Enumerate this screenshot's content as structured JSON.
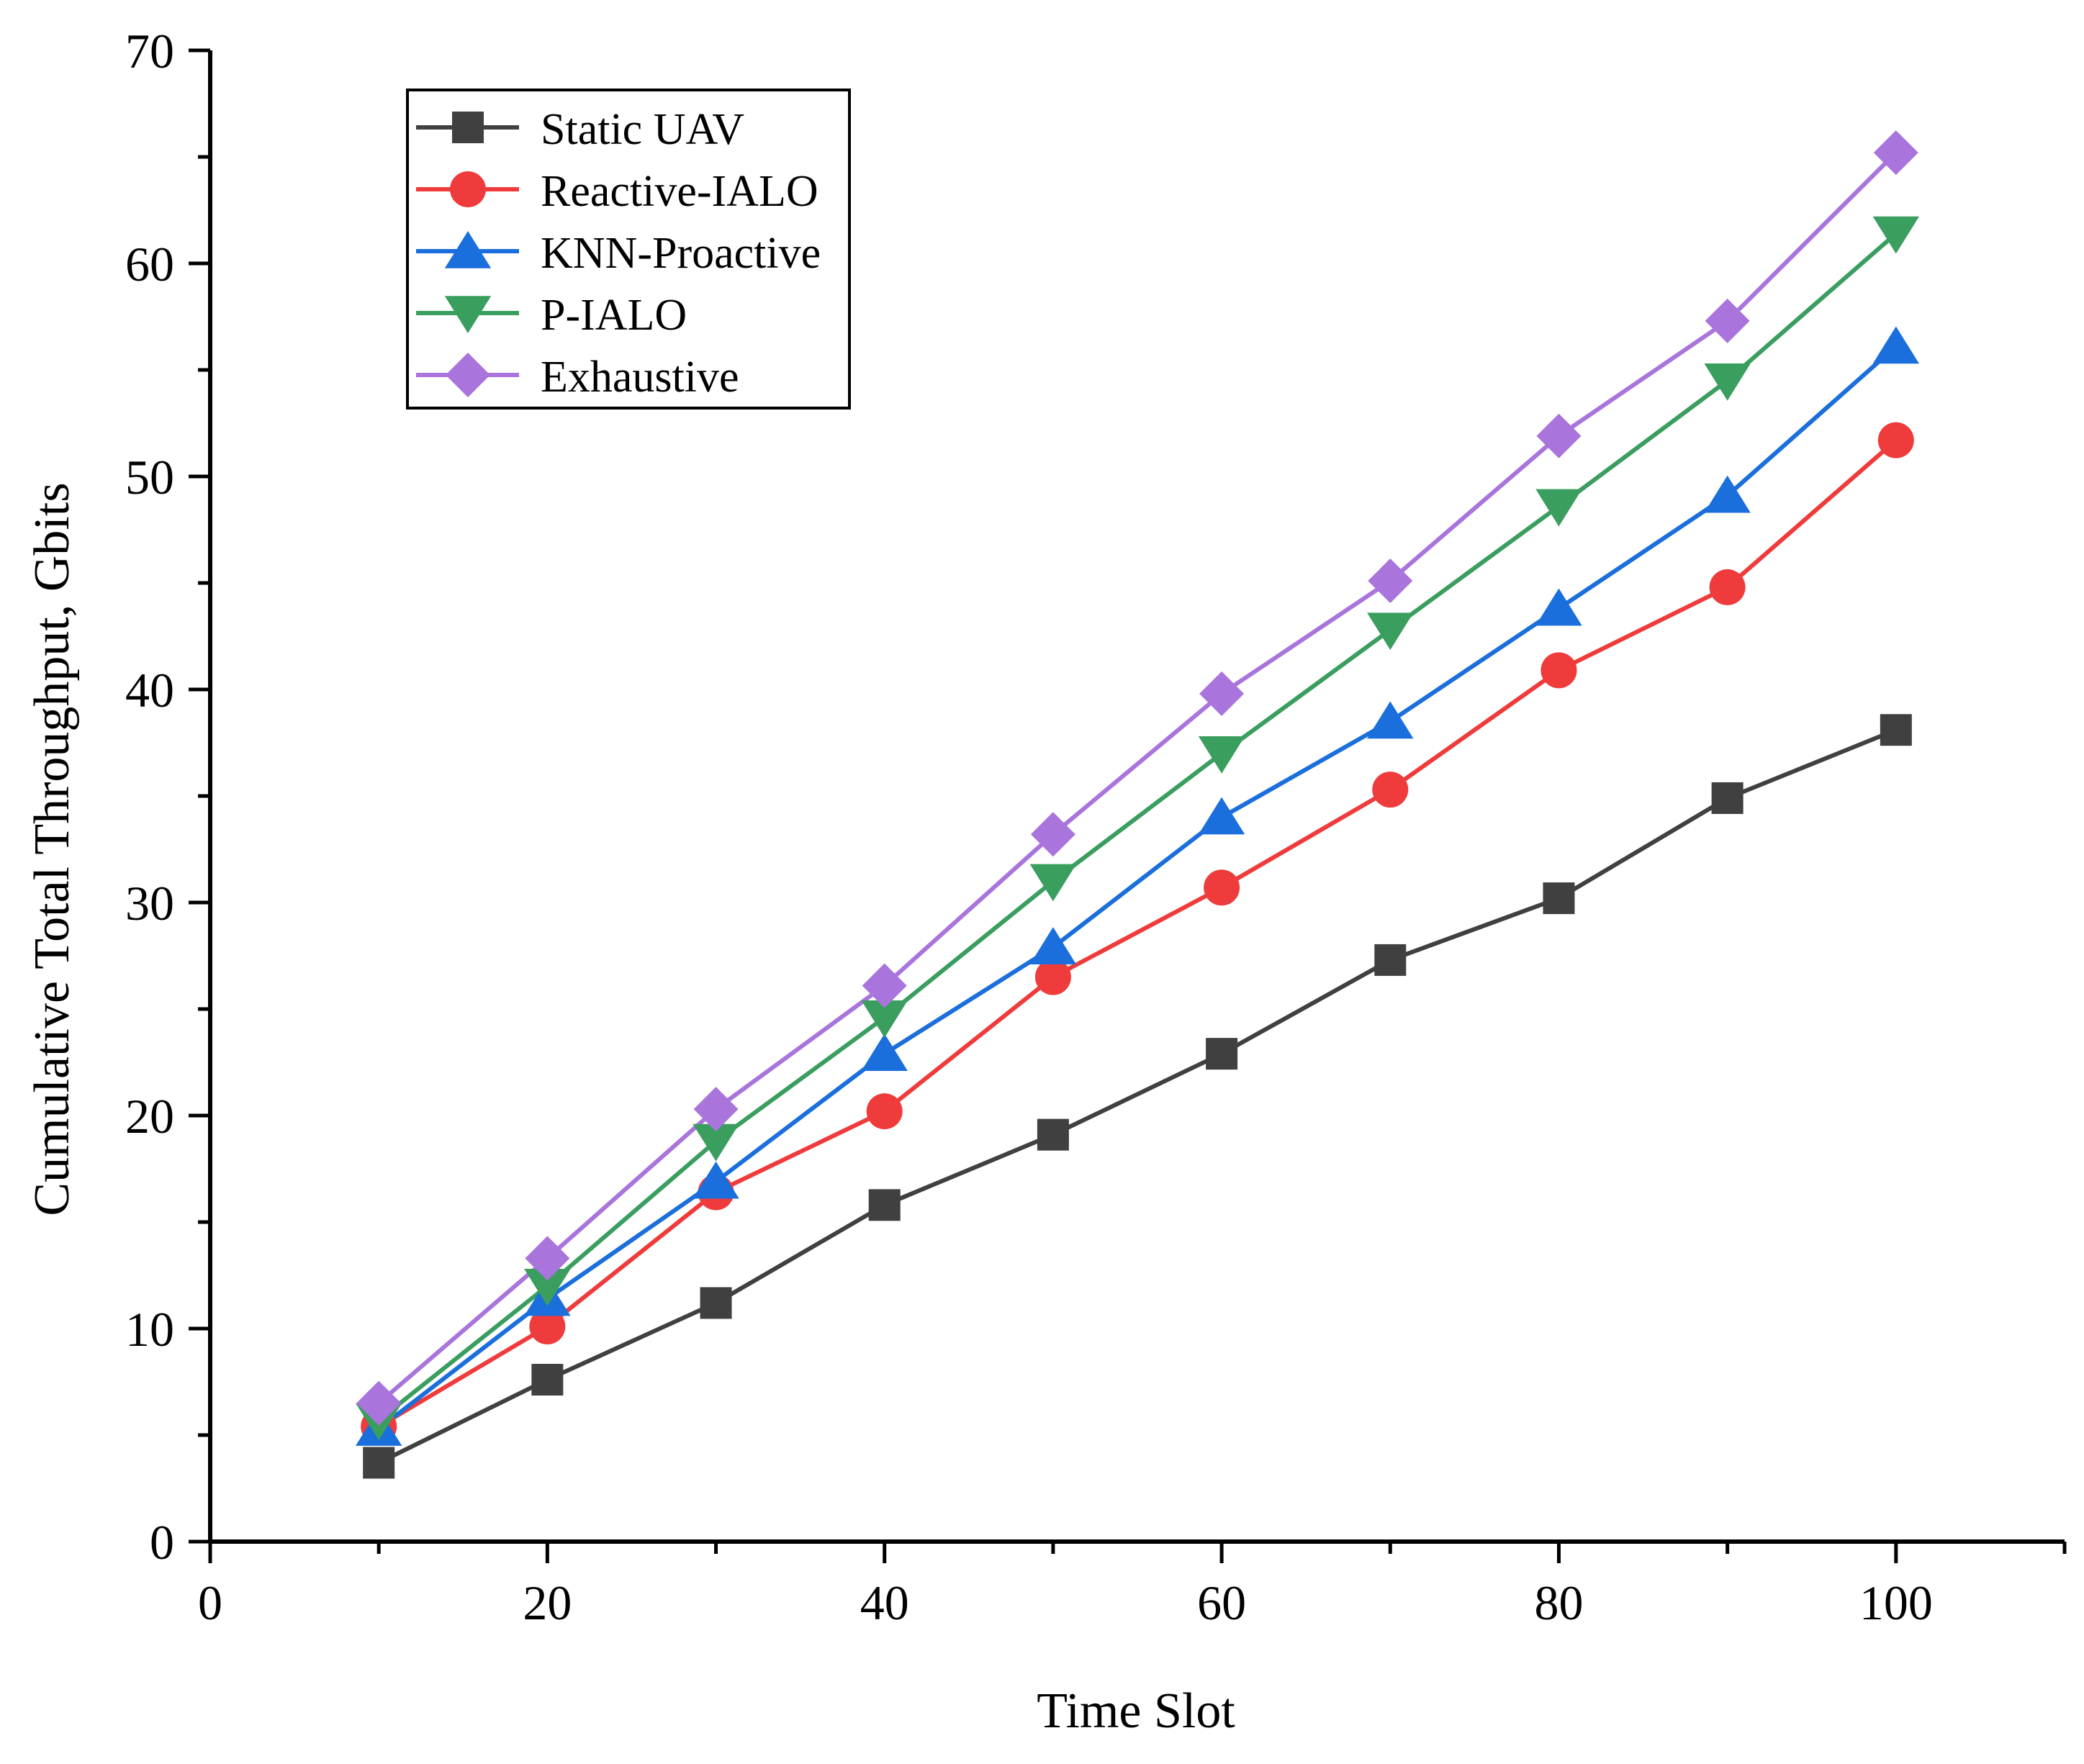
{
  "chart_data": {
    "type": "line",
    "title": "",
    "xlabel": "Time Slot",
    "ylabel": "Cumulative Total Throughput, Gbits",
    "xlim": [
      0,
      110
    ],
    "ylim": [
      0,
      70
    ],
    "x_ticks": [
      0,
      20,
      40,
      60,
      80,
      100
    ],
    "x_tick_labels": [
      "0",
      "20",
      "40",
      "60",
      "80",
      "100"
    ],
    "y_ticks": [
      0,
      10,
      20,
      30,
      40,
      50,
      60,
      70
    ],
    "y_tick_labels": [
      "0",
      "10",
      "20",
      "30",
      "40",
      "50",
      "60",
      "70"
    ],
    "grid": false,
    "legend_position": "top-left",
    "x": [
      10,
      20,
      30,
      40,
      50,
      60,
      70,
      80,
      90,
      100
    ],
    "series": [
      {
        "name": "Static UAV",
        "color": "#404040",
        "marker": "square",
        "values": [
          3.7,
          7.6,
          11.2,
          15.8,
          19.1,
          22.9,
          27.3,
          30.2,
          34.9,
          38.1
        ]
      },
      {
        "name": "Reactive-IALO",
        "color": "#ef3b3b",
        "marker": "circle",
        "values": [
          5.4,
          10.1,
          16.4,
          20.2,
          26.5,
          30.7,
          35.3,
          40.9,
          44.8,
          51.7
        ]
      },
      {
        "name": "KNN-Proactive",
        "color": "#1b6fdc",
        "marker": "triangle-up",
        "values": [
          5.3,
          11.4,
          16.9,
          22.9,
          27.9,
          34.0,
          38.5,
          43.8,
          49.1,
          56.1
        ]
      },
      {
        "name": "P-IALO",
        "color": "#3a9e5f",
        "marker": "triangle-down",
        "values": [
          5.7,
          12.0,
          18.8,
          24.6,
          31.0,
          37.0,
          42.8,
          48.6,
          54.5,
          61.4
        ]
      },
      {
        "name": "Exhaustive",
        "color": "#a974dc",
        "marker": "diamond",
        "values": [
          6.5,
          13.3,
          20.3,
          26.1,
          33.2,
          39.8,
          45.1,
          51.9,
          57.3,
          65.2
        ]
      }
    ]
  }
}
